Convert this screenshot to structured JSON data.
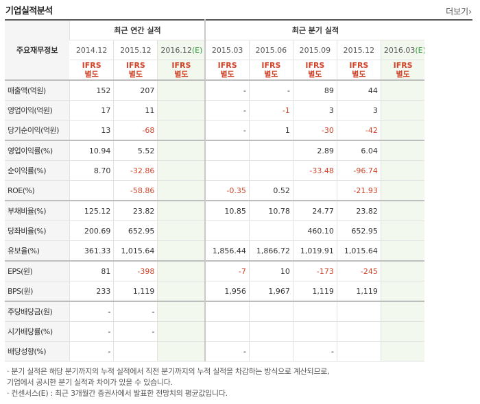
{
  "header": {
    "title": "기업실적분석",
    "more": "더보기"
  },
  "table": {
    "row_header": "주요재무정보",
    "annual_title": "최근 연간 실적",
    "quarter_title": "최근 분기 실적",
    "annual_periods": [
      {
        "label": "2014.12",
        "est": ""
      },
      {
        "label": "2015.12",
        "est": ""
      },
      {
        "label": "2016.12",
        "est": "(E)"
      }
    ],
    "quarter_periods": [
      {
        "label": "2015.03",
        "est": ""
      },
      {
        "label": "2015.06",
        "est": ""
      },
      {
        "label": "2015.09",
        "est": ""
      },
      {
        "label": "2015.12",
        "est": ""
      },
      {
        "label": "2016.03",
        "est": "(E)"
      }
    ],
    "ifrs": {
      "line1": "IFRS",
      "line2": "별도"
    },
    "rows": [
      {
        "label": "매출액(억원)",
        "values": [
          "152",
          "207",
          "",
          "-",
          "-",
          "89",
          "44",
          ""
        ]
      },
      {
        "label": "영업이익(억원)",
        "values": [
          "17",
          "11",
          "",
          "-",
          "-1",
          "3",
          "3",
          ""
        ]
      },
      {
        "label": "당기순이익(억원)",
        "values": [
          "13",
          "-68",
          "",
          "-",
          "1",
          "-30",
          "-42",
          ""
        ]
      },
      {
        "label": "영업이익률(%)",
        "values": [
          "10.94",
          "5.52",
          "",
          "",
          "",
          "2.89",
          "6.04",
          ""
        ]
      },
      {
        "label": "순이익률(%)",
        "values": [
          "8.70",
          "-32.86",
          "",
          "",
          "",
          "-33.48",
          "-96.74",
          ""
        ]
      },
      {
        "label": "ROE(%)",
        "values": [
          "",
          "-58.86",
          "",
          "-0.35",
          "0.52",
          "",
          "-21.93",
          ""
        ]
      },
      {
        "label": "부채비율(%)",
        "values": [
          "125.12",
          "23.82",
          "",
          "10.85",
          "10.78",
          "24.77",
          "23.82",
          ""
        ]
      },
      {
        "label": "당좌비율(%)",
        "values": [
          "200.69",
          "652.95",
          "",
          "",
          "",
          "460.10",
          "652.95",
          ""
        ]
      },
      {
        "label": "유보율(%)",
        "values": [
          "361.33",
          "1,015.64",
          "",
          "1,856.44",
          "1,866.72",
          "1,019.91",
          "1,015.64",
          ""
        ]
      },
      {
        "label": "EPS(원)",
        "values": [
          "81",
          "-398",
          "",
          "-7",
          "10",
          "-173",
          "-245",
          ""
        ]
      },
      {
        "label": "BPS(원)",
        "values": [
          "233",
          "1,119",
          "",
          "1,956",
          "1,967",
          "1,119",
          "1,119",
          ""
        ]
      },
      {
        "label": "주당배당금(원)",
        "values": [
          "-",
          "-",
          "",
          "",
          "",
          "",
          "",
          ""
        ]
      },
      {
        "label": "시가배당률(%)",
        "values": [
          "-",
          "-",
          "",
          "",
          "",
          "",
          "",
          ""
        ]
      },
      {
        "label": "배당성향(%)",
        "values": [
          "-",
          "",
          "",
          "-",
          "",
          "-",
          "",
          ""
        ]
      }
    ]
  },
  "notes": [
    "· 분기 실적은 해당 분기까지의 누적 실적에서 직전 분기까지의 누적 실적을 차감하는 방식으로 계산되므로,",
    "  기업에서 공시한 분기 실적과 차이가 있을 수 있습니다.",
    "· 컨센서스(E) : 최근 3개월간 증권사에서 발표한 전망치의 평균값입니다."
  ],
  "colors": {
    "negative": "#d0442a",
    "ifrs": "#d0442a",
    "estimate_bg": "#f3f8ef",
    "estimate_mark": "#2e9e39"
  }
}
